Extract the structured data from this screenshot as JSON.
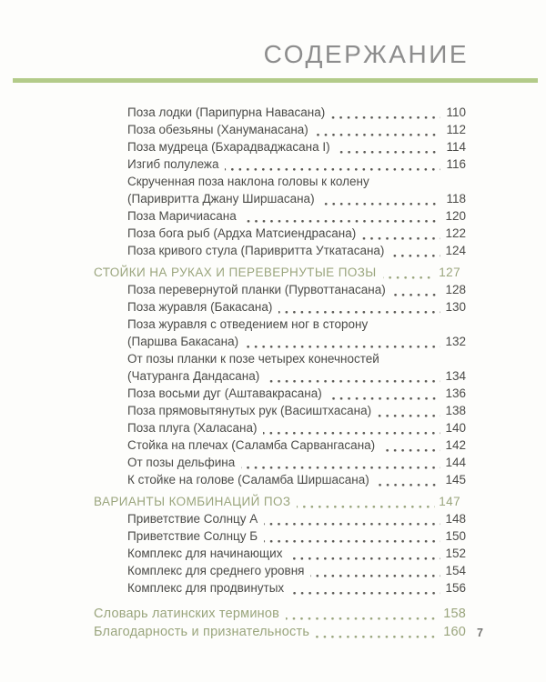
{
  "page": {
    "title": "СОДЕРЖАНИЕ",
    "folio": "7"
  },
  "colors": {
    "accent_rule": "#b3cb89",
    "section_text": "#9aa57d",
    "body_text": "#4b4b48",
    "title_text": "#8d8d8d"
  },
  "toc": {
    "entries": [
      {
        "label": "Поза лодки (Парипурна Навасана)",
        "page": "110",
        "type": "entry"
      },
      {
        "label": "Поза обезьяны (Хануманасана)",
        "page": "112",
        "type": "entry"
      },
      {
        "label": "Поза мудреца (Бхарадваджасана I)",
        "page": "114",
        "type": "entry"
      },
      {
        "label": "Изгиб полулежа",
        "page": "116",
        "type": "entry"
      },
      {
        "label": "Скрученная поза наклона головы к колену",
        "page": "",
        "type": "entry-wrap"
      },
      {
        "label": "(Паривритта Джану Ширшасана)",
        "page": "118",
        "type": "entry"
      },
      {
        "label": "Поза Маричиасана",
        "page": "120",
        "type": "entry"
      },
      {
        "label": "Поза бога рыб (Ардха Матсиендрасана)",
        "page": "122",
        "type": "entry"
      },
      {
        "label": "Поза кривого стула (Паривритта Уткатасана)",
        "page": "124",
        "type": "entry"
      },
      {
        "label": "СТОЙКИ НА РУКАХ И ПЕРЕВЕРНУТЫЕ ПОЗЫ",
        "page": "127",
        "type": "section"
      },
      {
        "label": "Поза перевернутой планки (Пурвоттанасана)",
        "page": "128",
        "type": "entry"
      },
      {
        "label": "Поза журавля (Бакасана)",
        "page": "130",
        "type": "entry"
      },
      {
        "label": "Поза журавля с отведением ног в сторону",
        "page": "",
        "type": "entry-wrap"
      },
      {
        "label": "(Паршва Бакасана)",
        "page": "132",
        "type": "entry"
      },
      {
        "label": "От позы планки к позе четырех конечностей",
        "page": "",
        "type": "entry-wrap"
      },
      {
        "label": "(Чатуранга Дандасана)",
        "page": "134",
        "type": "entry"
      },
      {
        "label": "Поза восьми дуг (Аштавакрасана)",
        "page": "136",
        "type": "entry"
      },
      {
        "label": "Поза прямовытянутых рук (Васиштхасана)",
        "page": "138",
        "type": "entry"
      },
      {
        "label": "Поза плуга (Халасана)",
        "page": "140",
        "type": "entry"
      },
      {
        "label": "Стойка на плечах (Саламба Сарвангасана)",
        "page": "142",
        "type": "entry"
      },
      {
        "label": "От позы дельфина",
        "page": "144",
        "type": "entry"
      },
      {
        "label": "К стойке на голове (Саламба Ширшасана)",
        "page": "145",
        "type": "entry"
      },
      {
        "label": "ВАРИАНТЫ КОМБИНАЦИЙ ПОЗ",
        "page": "147",
        "type": "section"
      },
      {
        "label": "Приветствие Солнцу А",
        "page": "148",
        "type": "entry"
      },
      {
        "label": "Приветствие Солнцу Б",
        "page": "150",
        "type": "entry"
      },
      {
        "label": "Комплекс для начинающих",
        "page": "152",
        "type": "entry"
      },
      {
        "label": "Комплекс для среднего уровня",
        "page": "154",
        "type": "entry"
      },
      {
        "label": "Комплекс для продвинутых",
        "page": "156",
        "type": "entry"
      },
      {
        "label": "Словарь латинских терминов",
        "page": "158",
        "type": "backmatter"
      },
      {
        "label": "Благодарность и признательность",
        "page": "160",
        "type": "backmatter"
      }
    ]
  }
}
